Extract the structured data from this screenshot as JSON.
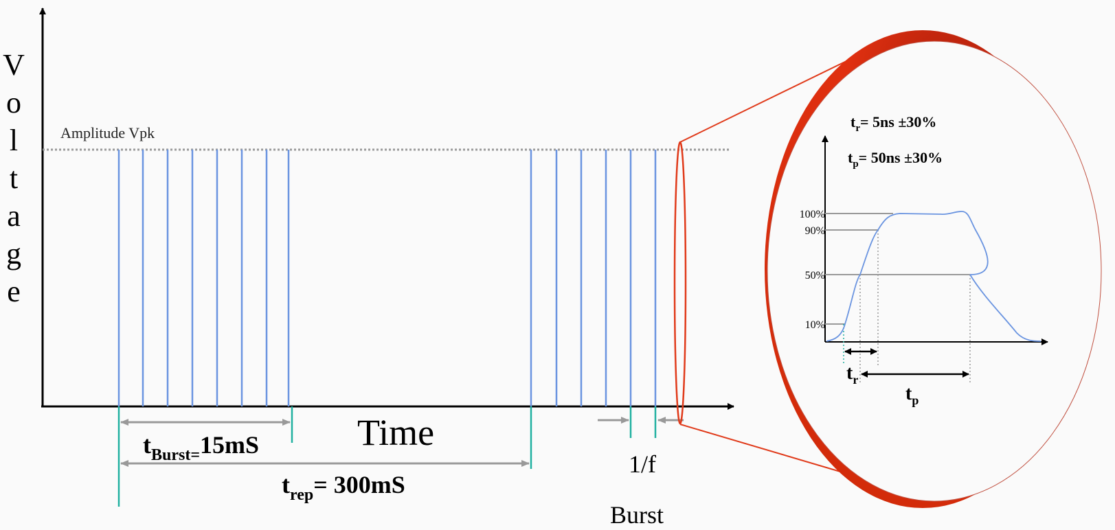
{
  "axis": {
    "y_label": "Voltage",
    "x_label": "Time",
    "amplitude": "Amplitude Vpk"
  },
  "burst": {
    "t": "t",
    "sub": "Burst=",
    "value": "15mS"
  },
  "repetition": {
    "t": "t",
    "sub": "rep",
    "value": "= 300mS"
  },
  "frequency": {
    "line1": "1/f",
    "line2": "Burst"
  },
  "inset": {
    "rise_spec": {
      "t": "t",
      "sub": "r",
      "value": "= 5ns ±30%"
    },
    "pulse_spec": {
      "t": "t",
      "sub": "p",
      "value": "= 50ns ±30%"
    },
    "levels": [
      "100%",
      "90%",
      "50%",
      "10%"
    ],
    "rise_label": {
      "t": "t",
      "sub": "r"
    },
    "pulse_label": {
      "t": "t",
      "sub": "p"
    }
  }
}
